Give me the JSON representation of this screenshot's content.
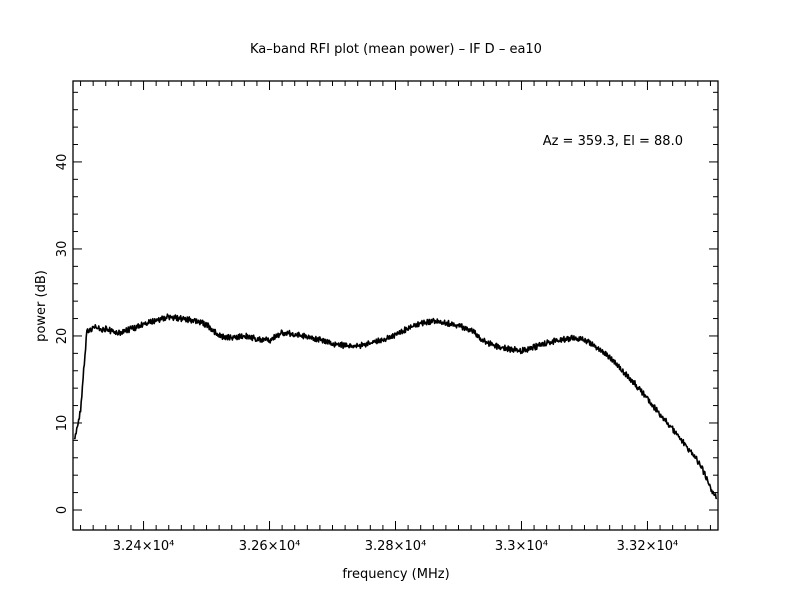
{
  "chart_data": {
    "type": "line",
    "title": "Ka–band RFI plot (mean power) – IF D – ea10",
    "xlabel": "frequency (MHz)",
    "ylabel": "power (dB)",
    "annotation": "Az = 359.3, El = 88.0",
    "xlim": [
      32288,
      33312
    ],
    "ylim": [
      -2.3,
      49.3
    ],
    "x_ticks": [
      {
        "value": 32400,
        "label": "3.24×10⁴"
      },
      {
        "value": 32600,
        "label": "3.26×10⁴"
      },
      {
        "value": 32800,
        "label": "3.28×10⁴"
      },
      {
        "value": 33000,
        "label": "3.3×10⁴"
      },
      {
        "value": 33200,
        "label": "3.32×10⁴"
      }
    ],
    "y_ticks": [
      {
        "value": 0,
        "label": "0"
      },
      {
        "value": 10,
        "label": "10"
      },
      {
        "value": 20,
        "label": "20"
      },
      {
        "value": 30,
        "label": "30"
      },
      {
        "value": 40,
        "label": "40"
      }
    ],
    "grid": false,
    "series": [
      {
        "color": "#000000",
        "x": [
          32290,
          32295,
          32300,
          32305,
          32310,
          32320,
          32330,
          32340,
          32360,
          32380,
          32400,
          32420,
          32440,
          32460,
          32480,
          32500,
          32520,
          32540,
          32560,
          32580,
          32600,
          32620,
          32640,
          32660,
          32680,
          32700,
          32720,
          32740,
          32760,
          32780,
          32800,
          32820,
          32840,
          32860,
          32880,
          32900,
          32920,
          32940,
          32960,
          32980,
          33000,
          33020,
          33040,
          33060,
          33080,
          33100,
          33120,
          33140,
          33160,
          33180,
          33200,
          33220,
          33240,
          33260,
          33280,
          33290,
          33300,
          33305,
          33310
        ],
        "y": [
          8,
          9.5,
          11.5,
          16,
          20.5,
          21,
          20.8,
          20.8,
          20.3,
          20.8,
          21.3,
          21.8,
          22.2,
          22,
          21.8,
          21.3,
          20,
          19.8,
          20,
          19.7,
          19.5,
          20.4,
          20.2,
          19.9,
          19.6,
          19.1,
          18.9,
          18.8,
          19.2,
          19.5,
          20.1,
          20.9,
          21.4,
          21.7,
          21.5,
          21.2,
          20.7,
          19.4,
          18.8,
          18.5,
          18.3,
          18.7,
          19.2,
          19.5,
          19.7,
          19.6,
          18.7,
          17.5,
          16,
          14.5,
          12.8,
          11,
          9.3,
          7.5,
          5.6,
          4.3,
          2.5,
          1.8,
          1.4
        ]
      }
    ]
  }
}
